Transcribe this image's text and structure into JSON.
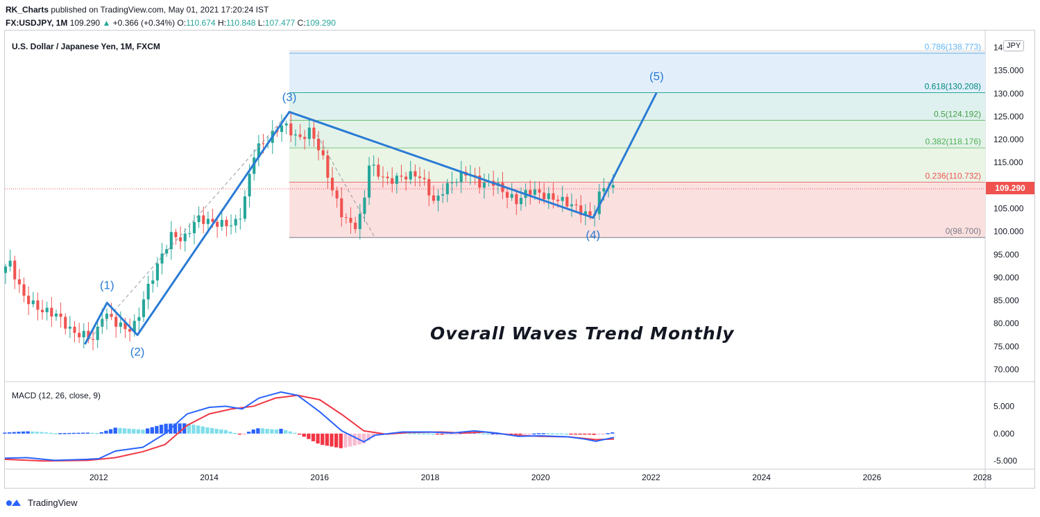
{
  "header": {
    "author": "RK_Charts",
    "published": "published on TradingView.com, May 01, 2021 17:20:24 IST",
    "symbol": "FX:USDJPY, 1M",
    "last": "109.290",
    "change": "+0.366 (+0.34%)",
    "o_label": "O:",
    "o": "110.674",
    "h_label": "H:",
    "h": "110.848",
    "l_label": "L:",
    "l": "107.477",
    "c_label": "C:",
    "c": "109.290"
  },
  "main": {
    "title": "U.S. Dollar / Japanese Yen, 1M, FXCM",
    "currency": "JPY",
    "price_tag": "109.290",
    "annotation": "Overall Waves Trend Monthly"
  },
  "macd": {
    "title": "MACD (12, 26, close, 9)"
  },
  "footer": {
    "brand": "TradingView"
  },
  "colors": {
    "up": "#26a69a",
    "down": "#ef5350",
    "wave": "#2a7bd4",
    "macd": "#2962ff",
    "signal": "#f23645"
  },
  "chart_data": {
    "type": "candlestick",
    "title": "U.S. Dollar / Japanese Yen, 1M, FXCM",
    "x_range": [
      2010.3,
      2028.05
    ],
    "x_ticks": [
      "2012",
      "2014",
      "2016",
      "2018",
      "2020",
      "2022",
      "2024",
      "2026",
      "2028"
    ],
    "y_range": [
      67.5,
      142.5
    ],
    "y_ticks": [
      "70.000",
      "75.000",
      "80.000",
      "85.000",
      "90.000",
      "95.000",
      "100.000",
      "105.000",
      "110.000",
      "115.000",
      "120.000",
      "125.000",
      "130.000",
      "135.000",
      "140.000"
    ],
    "price_keypoints": [
      [
        2010.3,
        91
      ],
      [
        2010.45,
        93.5
      ],
      [
        2010.7,
        86
      ],
      [
        2011.0,
        83
      ],
      [
        2011.3,
        82
      ],
      [
        2011.6,
        78
      ],
      [
        2011.8,
        77.5
      ],
      [
        2012.0,
        76.5
      ],
      [
        2012.15,
        82.5
      ],
      [
        2012.4,
        80
      ],
      [
        2012.6,
        78.5
      ],
      [
        2012.75,
        80
      ],
      [
        2012.9,
        86
      ],
      [
        2013.2,
        94.5
      ],
      [
        2013.4,
        99.5
      ],
      [
        2013.6,
        98
      ],
      [
        2013.85,
        103
      ],
      [
        2014.1,
        102
      ],
      [
        2014.4,
        101.5
      ],
      [
        2014.6,
        102
      ],
      [
        2014.75,
        109
      ],
      [
        2014.9,
        118
      ],
      [
        2015.1,
        119.5
      ],
      [
        2015.4,
        123.5
      ],
      [
        2015.7,
        120
      ],
      [
        2015.9,
        122
      ],
      [
        2016.1,
        117
      ],
      [
        2016.3,
        109
      ],
      [
        2016.5,
        103
      ],
      [
        2016.7,
        101
      ],
      [
        2016.85,
        104
      ],
      [
        2016.95,
        115
      ],
      [
        2017.1,
        113
      ],
      [
        2017.3,
        111
      ],
      [
        2017.6,
        112
      ],
      [
        2017.85,
        112.5
      ],
      [
        2018.0,
        110
      ],
      [
        2018.15,
        106
      ],
      [
        2018.3,
        109
      ],
      [
        2018.5,
        111
      ],
      [
        2018.75,
        113
      ],
      [
        2019.0,
        110
      ],
      [
        2019.2,
        111
      ],
      [
        2019.45,
        108
      ],
      [
        2019.65,
        106.5
      ],
      [
        2019.85,
        109
      ],
      [
        2020.0,
        108.5
      ],
      [
        2020.2,
        107.5
      ],
      [
        2020.4,
        107
      ],
      [
        2020.6,
        106
      ],
      [
        2020.8,
        104.5
      ],
      [
        2020.95,
        103.2
      ],
      [
        2021.05,
        104.5
      ],
      [
        2021.15,
        108.5
      ],
      [
        2021.25,
        110.6
      ],
      [
        2021.33,
        109.29
      ]
    ],
    "fibonacci": [
      {
        "ratio": "0",
        "level": 98.7,
        "label": "0(98.700)"
      },
      {
        "ratio": "0.236",
        "level": 110.732,
        "label": "0.236(110.732)"
      },
      {
        "ratio": "0.382",
        "level": 118.176,
        "label": "0.382(118.176)"
      },
      {
        "ratio": "0.5",
        "level": 124.192,
        "label": "0.5(124.192)"
      },
      {
        "ratio": "0.618",
        "level": 130.208,
        "label": "0.618(130.208)"
      },
      {
        "ratio": "0.786",
        "level": 138.773,
        "label": "0.786(138.773)"
      }
    ],
    "fib_x_start": 2015.45,
    "waves": [
      {
        "label": "",
        "x": 2011.75,
        "y": 75.5
      },
      {
        "label": "(1)",
        "x": 2012.15,
        "y": 84.5
      },
      {
        "label": "(2)",
        "x": 2012.7,
        "y": 77.5
      },
      {
        "label": "(3)",
        "x": 2015.45,
        "y": 126
      },
      {
        "label": "(4)",
        "x": 2020.95,
        "y": 103
      },
      {
        "label": "(5)",
        "x": 2022.1,
        "y": 130.2
      }
    ],
    "current_price": 109.29,
    "macd": {
      "y_range": [
        -6.5,
        9.5
      ],
      "y_ticks": [
        "5.000",
        "0.000",
        "-5.000"
      ],
      "macd_line": [
        [
          2010.3,
          -4.5
        ],
        [
          2010.7,
          -4.4
        ],
        [
          2011.2,
          -4.9
        ],
        [
          2011.8,
          -4.7
        ],
        [
          2012.0,
          -4.6
        ],
        [
          2012.3,
          -3.2
        ],
        [
          2012.8,
          -2.5
        ],
        [
          2013.2,
          0.0
        ],
        [
          2013.6,
          3.6
        ],
        [
          2014.0,
          4.8
        ],
        [
          2014.3,
          5.0
        ],
        [
          2014.6,
          4.5
        ],
        [
          2014.9,
          6.5
        ],
        [
          2015.3,
          7.6
        ],
        [
          2015.6,
          7.0
        ],
        [
          2016.0,
          4.0
        ],
        [
          2016.4,
          0.5
        ],
        [
          2016.8,
          -1.5
        ],
        [
          2017.0,
          -0.3
        ],
        [
          2017.5,
          0.3
        ],
        [
          2018.0,
          0.3
        ],
        [
          2018.4,
          0.1
        ],
        [
          2018.8,
          0.5
        ],
        [
          2019.2,
          0.1
        ],
        [
          2019.6,
          -0.5
        ],
        [
          2020.0,
          -0.4
        ],
        [
          2020.5,
          -0.6
        ],
        [
          2020.8,
          -1.0
        ],
        [
          2021.0,
          -1.4
        ],
        [
          2021.33,
          -0.7
        ]
      ],
      "signal_line": [
        [
          2010.3,
          -4.7
        ],
        [
          2011.0,
          -5.0
        ],
        [
          2011.8,
          -4.9
        ],
        [
          2012.3,
          -4.4
        ],
        [
          2012.8,
          -3.3
        ],
        [
          2013.2,
          -2.0
        ],
        [
          2013.6,
          1.5
        ],
        [
          2014.0,
          3.6
        ],
        [
          2014.4,
          4.5
        ],
        [
          2014.8,
          5.0
        ],
        [
          2015.2,
          6.5
        ],
        [
          2015.6,
          7.0
        ],
        [
          2016.0,
          6.2
        ],
        [
          2016.4,
          3.5
        ],
        [
          2016.8,
          0.5
        ],
        [
          2017.2,
          -0.1
        ],
        [
          2017.6,
          0.2
        ],
        [
          2018.2,
          0.3
        ],
        [
          2018.6,
          0.1
        ],
        [
          2019.0,
          0.3
        ],
        [
          2019.5,
          -0.3
        ],
        [
          2020.0,
          -0.5
        ],
        [
          2020.5,
          -0.6
        ],
        [
          2021.0,
          -1.1
        ],
        [
          2021.33,
          -1.0
        ]
      ]
    }
  }
}
